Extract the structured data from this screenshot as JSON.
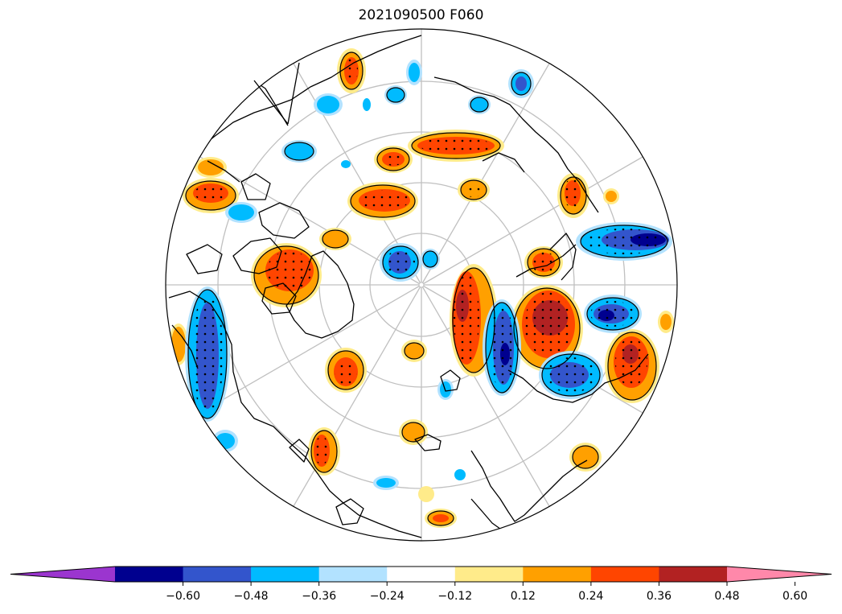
{
  "title": "2021090500 F060",
  "map": {
    "projection": "north-polar-stereographic",
    "graticule": true,
    "coastlines": true,
    "stippling": true
  },
  "colorbar": {
    "extend": "both",
    "colors": [
      "#9b35cf",
      "#00008f",
      "#3355cc",
      "#00bbff",
      "#b2e2ff",
      "#ffffff",
      "#ffeb8a",
      "#ffa000",
      "#ff4500",
      "#b22222",
      "#ff88aa"
    ],
    "ticks": [
      "−0.60",
      "−0.48",
      "−0.36",
      "−0.24",
      "−0.12",
      "0.12",
      "0.24",
      "0.36",
      "0.48",
      "0.60"
    ]
  }
}
